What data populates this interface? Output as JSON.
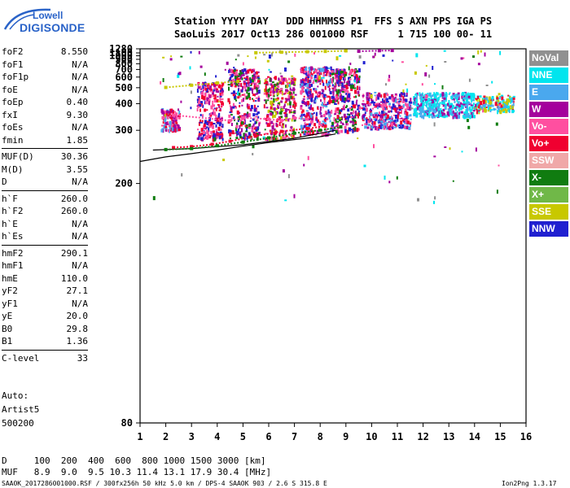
{
  "logo": {
    "top": "Lowell",
    "bottom": "DIGISONDE"
  },
  "header": {
    "line1": "Station YYYY DAY   DDD HHMMSS P1  FFS S AXN PPS IGA PS",
    "line2": "SaoLuis 2017 Oct13 286 001000 RSF     1 715 100 00- 11"
  },
  "params": [
    [
      {
        "k": "foF2",
        "v": "8.550"
      },
      {
        "k": "foF1",
        "v": "N/A"
      },
      {
        "k": "foF1p",
        "v": "N/A"
      },
      {
        "k": "foE",
        "v": "N/A"
      },
      {
        "k": "foEp",
        "v": "0.40"
      },
      {
        "k": "fxI",
        "v": "9.30"
      },
      {
        "k": "foEs",
        "v": "N/A"
      },
      {
        "k": "fmin",
        "v": "1.85"
      }
    ],
    [
      {
        "k": "MUF(D)",
        "v": "30.36"
      },
      {
        "k": "M(D)",
        "v": "3.55"
      },
      {
        "k": "D",
        "v": "N/A"
      }
    ],
    [
      {
        "k": "h`F",
        "v": "260.0"
      },
      {
        "k": "h`F2",
        "v": "260.0"
      },
      {
        "k": "h`E",
        "v": "N/A"
      },
      {
        "k": "h`Es",
        "v": "N/A"
      }
    ],
    [
      {
        "k": "hmF2",
        "v": "290.1"
      },
      {
        "k": "hmF1",
        "v": "N/A"
      },
      {
        "k": "hmE",
        "v": "110.0"
      },
      {
        "k": "yF2",
        "v": "27.1"
      },
      {
        "k": "yF1",
        "v": "N/A"
      },
      {
        "k": "yE",
        "v": "20.0"
      },
      {
        "k": "B0",
        "v": "29.8"
      },
      {
        "k": "B1",
        "v": "1.36"
      }
    ],
    [
      {
        "k": "C-level",
        "v": "33"
      }
    ]
  ],
  "auto": {
    "line1": "Auto:",
    "line2": "Artist5",
    "line3": "500200"
  },
  "legend": [
    {
      "label": "NoVal",
      "color": "#909090"
    },
    {
      "label": "NNE",
      "color": "#00e5ee"
    },
    {
      "label": "E",
      "color": "#4aa8ee"
    },
    {
      "label": "W",
      "color": "#a4009c"
    },
    {
      "label": "Vo-",
      "color": "#ff4fa0"
    },
    {
      "label": "Vo+",
      "color": "#f00030"
    },
    {
      "label": "SSW",
      "color": "#f0a8a8"
    },
    {
      "label": "X-",
      "color": "#107c10"
    },
    {
      "label": "X+",
      "color": "#70b848"
    },
    {
      "label": "SSE",
      "color": "#c8c800"
    },
    {
      "label": "NNW",
      "color": "#2020d0"
    }
  ],
  "footer": {
    "d_row": "D     100  200  400  600  800 1000 1500 3000 [km]",
    "muf_row": "MUF   8.9  9.0  9.5 10.3 11.4 13.1 17.9 30.4 [MHz]",
    "note_left": "SAAOK_2017286001000.RSF / 300fx256h 50 kHz 5.0 km / DPS-4 SAAOK 903 / 2.6 S 315.8 E",
    "note_right": "Ion2Png 1.3.17"
  },
  "chart_data": {
    "type": "scatter",
    "title": "",
    "xlabel": "",
    "ylabel": "",
    "xlim": [
      1,
      16
    ],
    "ylim": [
      80,
      1280
    ],
    "yscale": "reciprocal",
    "x_ticks": [
      "1",
      "2",
      "3",
      "4",
      "5",
      "6",
      "7",
      "8",
      "9",
      "10",
      "11",
      "12",
      "13",
      "14",
      "15",
      "16"
    ],
    "y_ticks": [
      "80",
      "200",
      "300",
      "400",
      "500",
      "600",
      "700",
      "800",
      "900",
      "1000",
      "1100",
      "1280"
    ],
    "grid": false,
    "legend_position": "right",
    "series": [
      {
        "name": "Vo+",
        "color": "#f00030",
        "points": [
          [
            2.3,
            258
          ],
          [
            3,
            260
          ],
          [
            3.8,
            265
          ],
          [
            4.5,
            272
          ],
          [
            5.5,
            285
          ],
          [
            6.5,
            297
          ],
          [
            7.5,
            305
          ],
          [
            8.2,
            312
          ]
        ]
      },
      {
        "name": "W",
        "color": "#a4009c",
        "points": [
          [
            9.5,
            1165
          ],
          [
            10.3,
            1190
          ],
          [
            10.8,
            1198
          ]
        ]
      },
      {
        "name": "SSE",
        "color": "#c8c800",
        "points": [
          [
            5.5,
            1105
          ],
          [
            6.5,
            1125
          ],
          [
            7.5,
            1145
          ],
          [
            8.2,
            1160
          ],
          [
            9,
            1185
          ]
        ]
      },
      {
        "name": "SSE",
        "color": "#c8c800",
        "points": [
          [
            2,
            502
          ],
          [
            3,
            520
          ],
          [
            4,
            540
          ],
          [
            4.8,
            555
          ]
        ]
      },
      {
        "name": "X-",
        "color": "#107c10",
        "points": [
          [
            2,
            254
          ],
          [
            3,
            256
          ],
          [
            4,
            262
          ],
          [
            5,
            270
          ],
          [
            6,
            280
          ],
          [
            7,
            292
          ],
          [
            8,
            300
          ],
          [
            8.8,
            310
          ]
        ]
      },
      {
        "name": "Vo-",
        "color": "#ff4fa0",
        "points": [
          [
            1.9,
            340
          ],
          [
            2.3,
            350
          ],
          [
            4.5,
            330
          ],
          [
            5,
            340
          ],
          [
            6,
            335
          ],
          [
            6.5,
            330
          ],
          [
            7,
            340
          ],
          [
            7.5,
            335
          ]
        ]
      }
    ],
    "traces": [
      {
        "color": "#000000",
        "points": [
          [
            1,
            232
          ],
          [
            2,
            240
          ],
          [
            3,
            246
          ],
          [
            4,
            253
          ],
          [
            5,
            261
          ],
          [
            6,
            269
          ],
          [
            7,
            276
          ],
          [
            8,
            283
          ],
          [
            8.6,
            290
          ]
        ]
      },
      {
        "color": "#000000",
        "points": [
          [
            1.5,
            253
          ],
          [
            3,
            256
          ],
          [
            5,
            264
          ],
          [
            7,
            279
          ],
          [
            8.6,
            300
          ]
        ]
      }
    ],
    "clusters": [
      {
        "x": [
          1.8,
          2.5
        ],
        "y": [
          300,
          380
        ],
        "n": 120,
        "palette": [
          "#a4009c",
          "#ff4fa0",
          "#f00030",
          "#4aa8ee"
        ]
      },
      {
        "x": [
          3.2,
          4.2
        ],
        "y": [
          280,
          560
        ],
        "n": 260,
        "palette": [
          "#a4009c",
          "#ff4fa0",
          "#f00030",
          "#2020d0"
        ]
      },
      {
        "x": [
          4.4,
          5.6
        ],
        "y": [
          280,
          720
        ],
        "n": 320,
        "palette": [
          "#a4009c",
          "#ff4fa0",
          "#f00030",
          "#107c10",
          "#2020d0"
        ]
      },
      {
        "x": [
          5.8,
          7.0
        ],
        "y": [
          280,
          620
        ],
        "n": 300,
        "palette": [
          "#a4009c",
          "#ff4fa0",
          "#f00030",
          "#107c10",
          "#c8c800"
        ]
      },
      {
        "x": [
          7.2,
          8.4
        ],
        "y": [
          290,
          760
        ],
        "n": 360,
        "palette": [
          "#a4009c",
          "#ff4fa0",
          "#f00030",
          "#2020d0",
          "#4aa8ee"
        ]
      },
      {
        "x": [
          8.4,
          9.5
        ],
        "y": [
          300,
          720
        ],
        "n": 320,
        "palette": [
          "#a4009c",
          "#f00030",
          "#2020d0",
          "#ff4fa0",
          "#107c10"
        ]
      },
      {
        "x": [
          9.6,
          11.5
        ],
        "y": [
          310,
          470
        ],
        "n": 360,
        "palette": [
          "#a4009c",
          "#f00030",
          "#2020d0",
          "#ff4fa0",
          "#4aa8ee"
        ]
      },
      {
        "x": [
          11.6,
          14.0
        ],
        "y": [
          350,
          470
        ],
        "n": 420,
        "palette": [
          "#00e5ee",
          "#00e5ee",
          "#4aa8ee",
          "#a4009c"
        ]
      },
      {
        "x": [
          14.0,
          15.5
        ],
        "y": [
          370,
          450
        ],
        "n": 160,
        "palette": [
          "#00e5ee",
          "#4aa8ee",
          "#f00030",
          "#c8c800"
        ]
      },
      {
        "x": [
          1.5,
          15
        ],
        "y": [
          180,
          1260
        ],
        "n": 140,
        "palette": [
          "#a4009c",
          "#00e5ee",
          "#ff4fa0",
          "#107c10",
          "#c8c800",
          "#2020d0",
          "#909090"
        ]
      }
    ]
  }
}
